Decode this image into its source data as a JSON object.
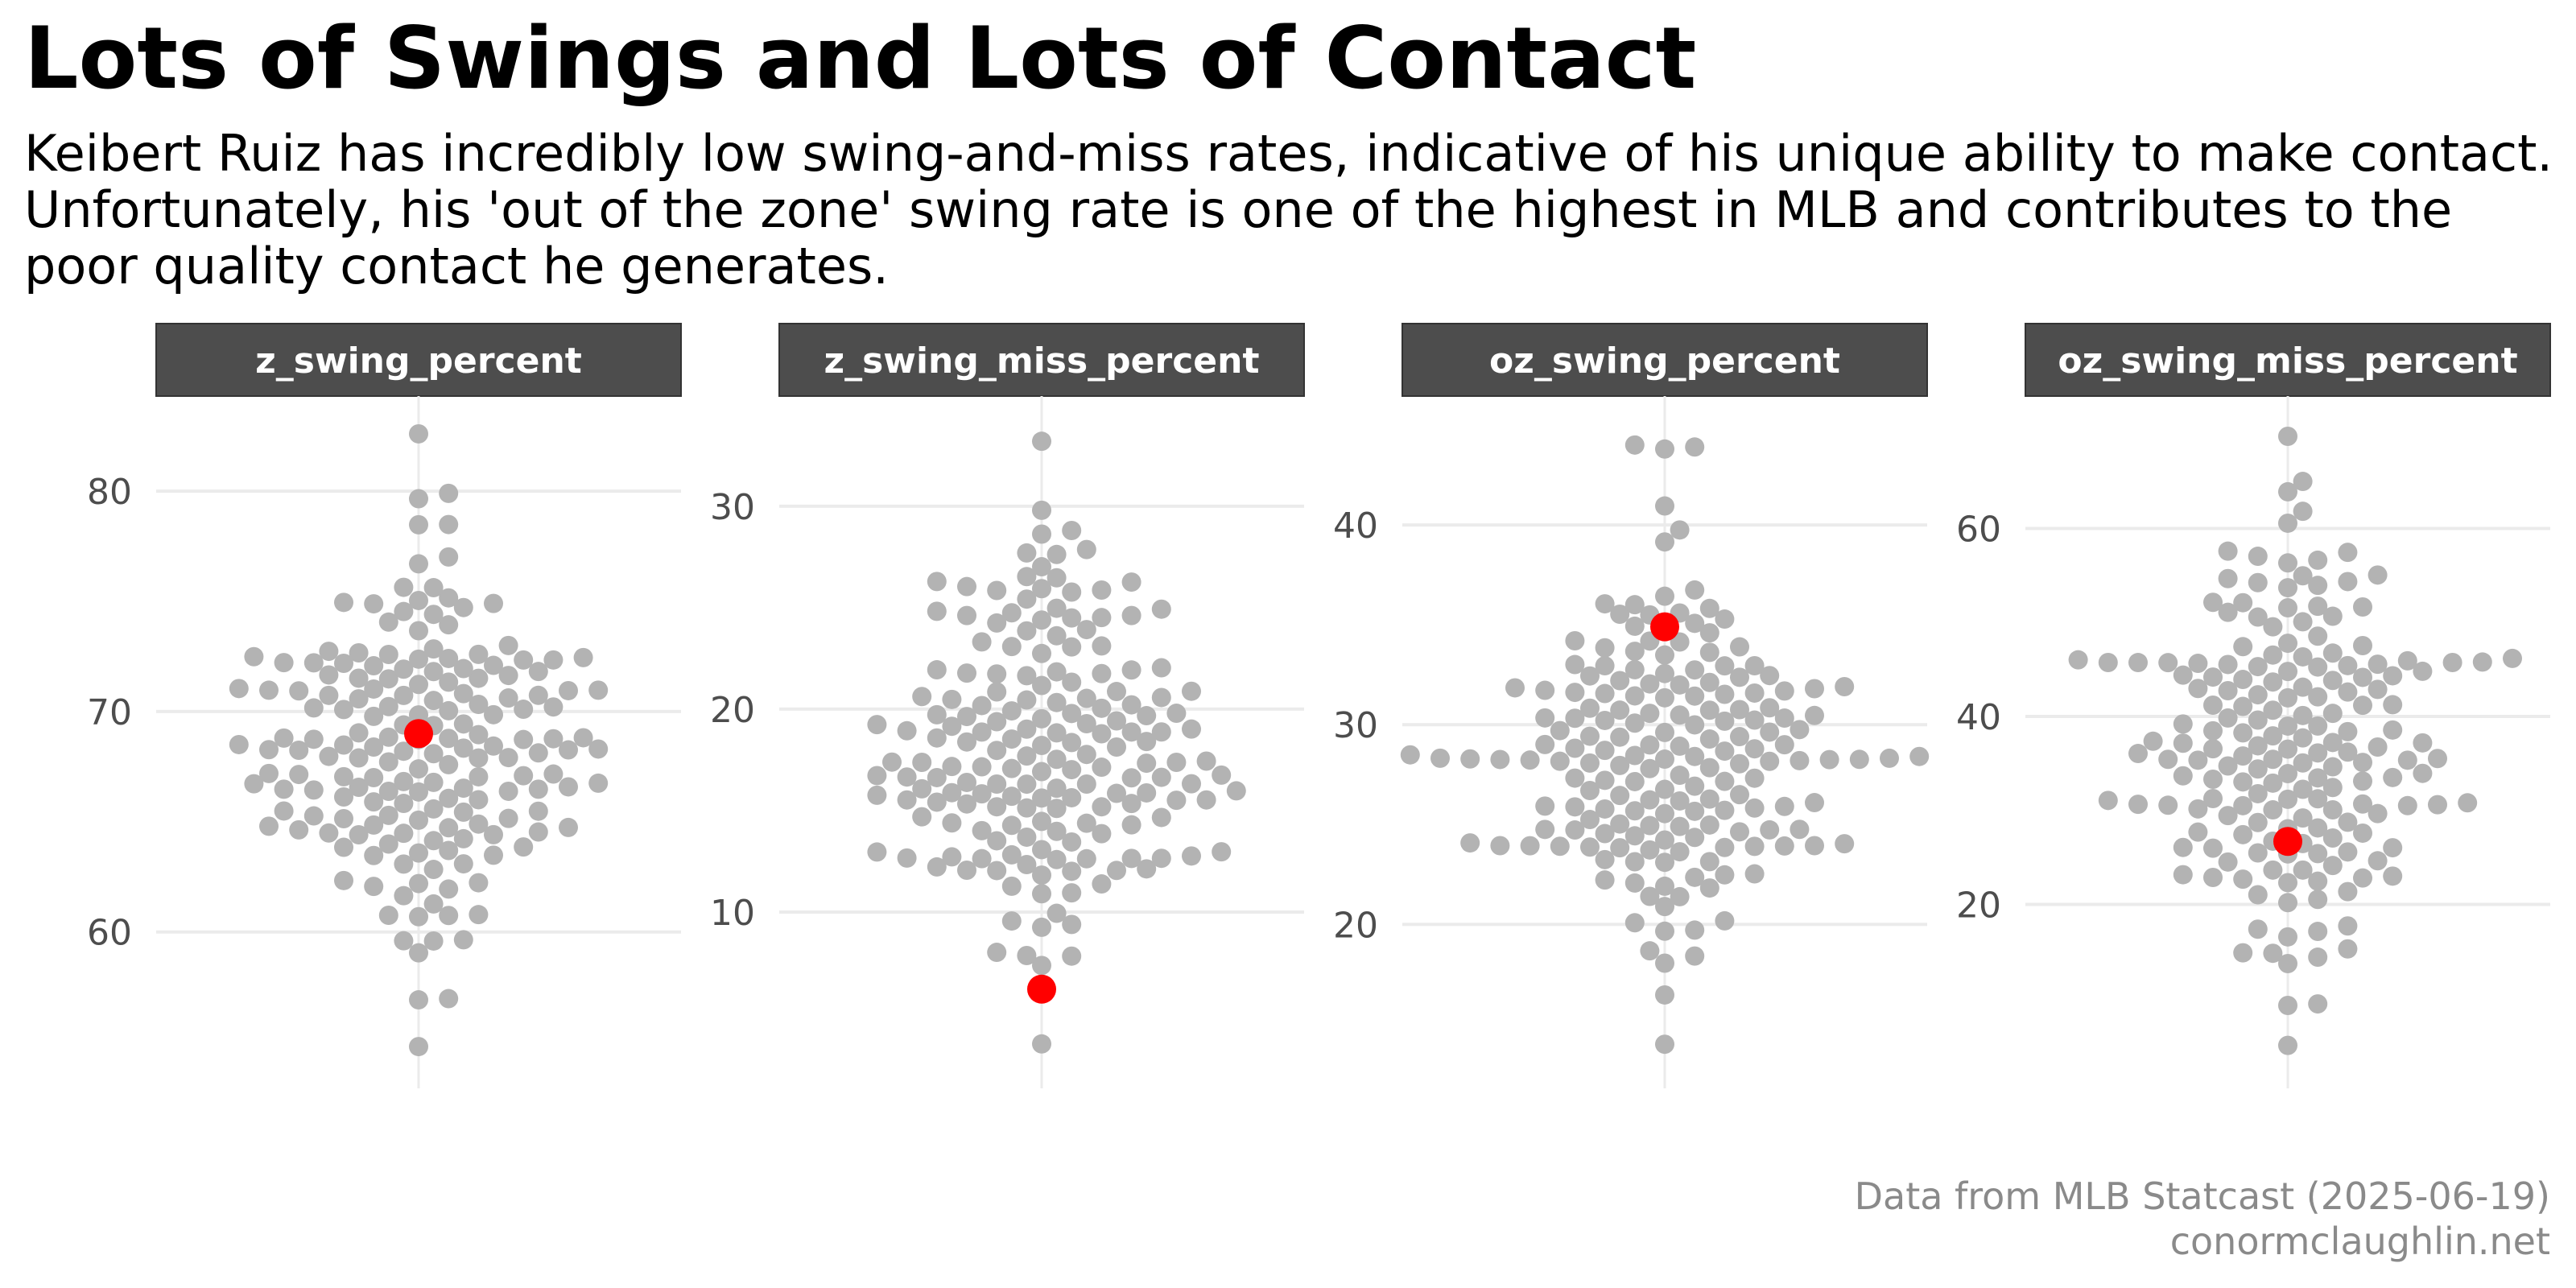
{
  "title": "Lots of Swings and Lots of Contact",
  "subtitle": "Keibert Ruiz has incredibly low swing-and-miss rates, indicative of his unique ability to make contact. Unfortunately, his 'out of the zone' swing rate is one of the highest in MLB and contributes to the poor quality contact he generates.",
  "caption": {
    "line1": "Data from MLB Statcast (2025-06-19)",
    "line2": "conormclaughlin.net"
  },
  "colors": {
    "background": "#ffffff",
    "point": "#b3b3b3",
    "highlight": "#ff0000",
    "strip_fill": "#4d4d4d",
    "strip_text": "#ffffff",
    "grid": "#ebebeb",
    "tick_text": "#4d4d4d",
    "caption": "#8a8a8a"
  },
  "chart_data": [
    {
      "type": "scatter",
      "facet": "z_swing_percent",
      "yticks": [
        60,
        70,
        80
      ],
      "ylim": [
        54,
        83
      ],
      "highlight": 69.0,
      "range": [
        54.8,
        82.6
      ],
      "outliers": [
        82.6,
        79.9,
        54.8
      ]
    },
    {
      "type": "scatter",
      "facet": "z_swing_miss_percent",
      "yticks": [
        10,
        20,
        30
      ],
      "ylim": [
        2.5,
        34
      ],
      "highlight": 6.2,
      "range": [
        3.5,
        33.2
      ],
      "outliers": [
        33.2,
        29.8,
        3.5
      ]
    },
    {
      "type": "scatter",
      "facet": "oz_swing_percent",
      "yticks": [
        20,
        30,
        40
      ],
      "ylim": [
        13,
        45
      ],
      "highlight": 34.9,
      "range": [
        14.0,
        44.0
      ],
      "outliers": [
        44.0,
        43.8,
        43.9,
        14.0
      ]
    },
    {
      "type": "scatter",
      "facet": "oz_swing_miss_percent",
      "yticks": [
        20,
        40,
        60
      ],
      "ylim": [
        3,
        71
      ],
      "highlight": 26.7,
      "range": [
        5.0,
        69.8
      ],
      "outliers": [
        69.8,
        65.0,
        5.0,
        14.8
      ]
    }
  ]
}
